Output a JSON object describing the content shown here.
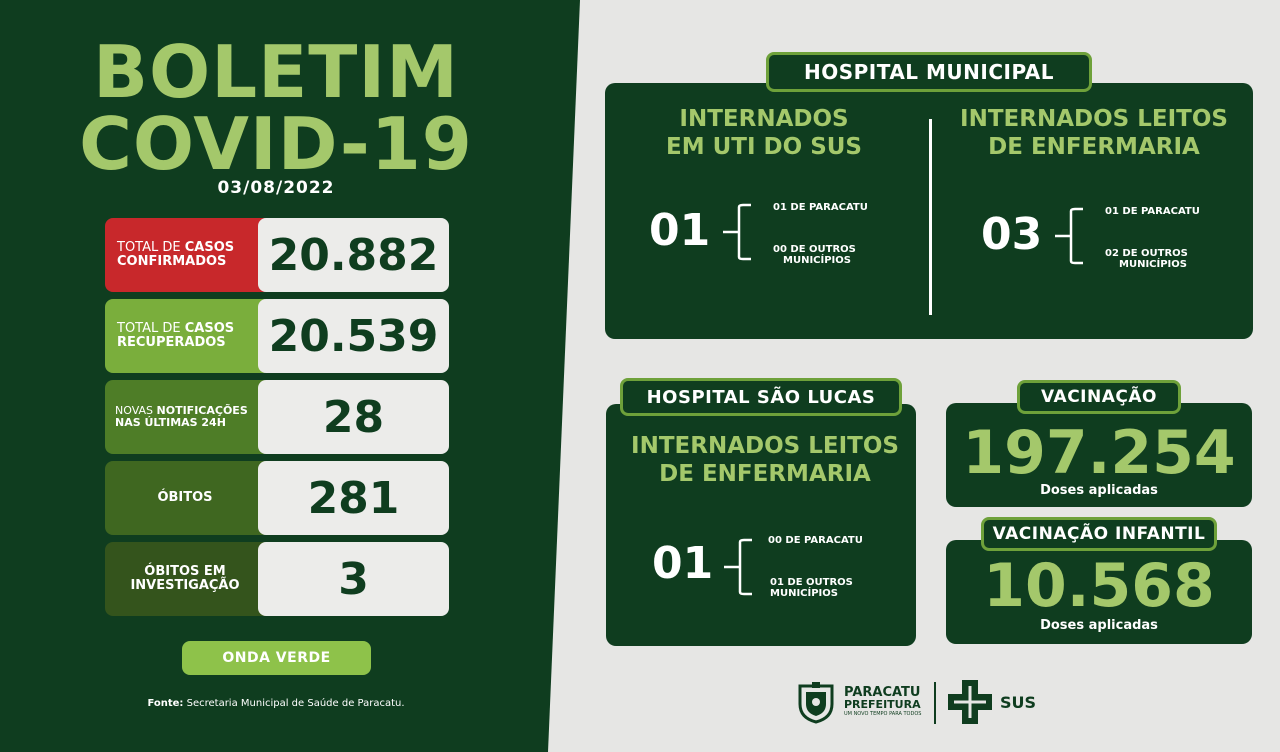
{
  "bulletin": {
    "title_line1": "BOLETIM",
    "title_line2": "COVID-19",
    "date": "03/08/2022"
  },
  "stats": [
    {
      "label_pre": "TOTAL DE ",
      "label_bold": "CASOS",
      "label_line2": "CONFIRMADOS",
      "value": "20.882",
      "color": "#c8282b"
    },
    {
      "label_pre": "TOTAL DE ",
      "label_bold": "CASOS",
      "label_line2": "RECUPERADOS",
      "value": "20.539",
      "color": "#7aae3c"
    },
    {
      "label_pre": "NOVAS ",
      "label_bold": "NOTIFICAÇÕES",
      "label_line2": "NAS ÚLTIMAS 24H",
      "value": "28",
      "color": "#4e7d27"
    },
    {
      "label_line1": "ÓBITOS",
      "value": "281",
      "color": "#3f6720"
    },
    {
      "label_line1": "ÓBITOS EM",
      "label_line2": "INVESTIGAÇÃO",
      "value": "3",
      "color": "#34541c"
    }
  ],
  "wave": "ONDA VERDE",
  "source": {
    "label": "Fonte:",
    "text": " Secretaria Municipal de Saúde de Paracatu."
  },
  "hospital_municipal": {
    "header": "HOSPITAL MUNICIPAL",
    "uti": {
      "title_line1": "INTERNADOS",
      "title_line2": "EM UTI DO SUS",
      "total": "01",
      "local": "01 DE PARACATU",
      "others_line1": "00 DE OUTROS",
      "others_line2": "MUNICÍPIOS"
    },
    "enfermaria": {
      "title_line1": "INTERNADOS LEITOS",
      "title_line2": "DE ENFERMARIA",
      "total": "03",
      "local": "01 DE PARACATU",
      "others_line1": "02 DE OUTROS",
      "others_line2": "MUNICÍPIOS"
    }
  },
  "hospital_sao_lucas": {
    "header": "HOSPITAL SÃO LUCAS",
    "title_line1": "INTERNADOS LEITOS",
    "title_line2": "DE ENFERMARIA",
    "total": "01",
    "local": "00 DE PARACATU",
    "others_line1": "01 DE OUTROS",
    "others_line2": "MUNICÍPIOS"
  },
  "vaccination": {
    "header": "VACINAÇÃO",
    "value": "197.254",
    "sub": "Doses aplicadas"
  },
  "vaccination_child": {
    "header": "VACINAÇÃO INFANTIL",
    "value": "10.568",
    "sub": "Doses aplicadas"
  },
  "footer": {
    "city_line1": "PARACATU",
    "city_line2": "PREFEITURA",
    "slogan": "UM NOVO TEMPO PARA TODOS",
    "sus": "SUS"
  }
}
